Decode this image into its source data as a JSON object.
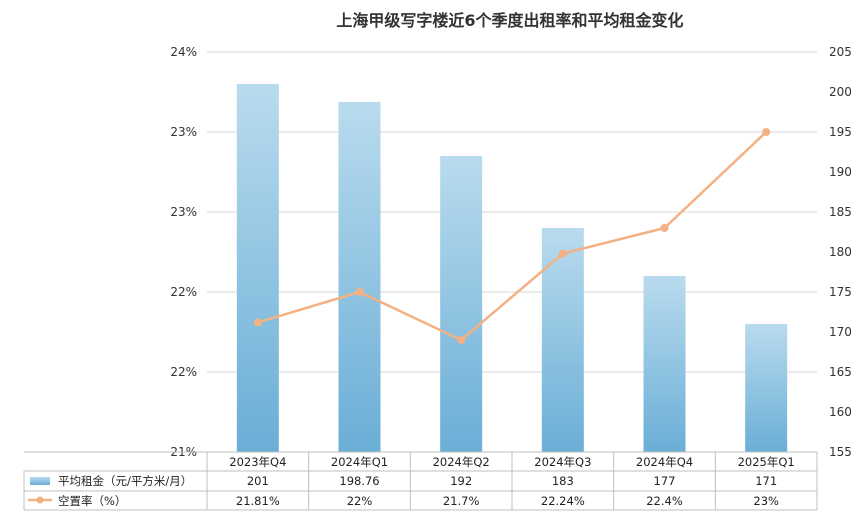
{
  "chart_data": {
    "type": "bar",
    "title": "上海甲级写字楼近6个季度出租率和平均租金变化",
    "categories": [
      "2023年Q4",
      "2024年Q1",
      "2024年Q2",
      "2024年Q3",
      "2024年Q4",
      "2025年Q1"
    ],
    "series": [
      {
        "name": "平均租金（元/平方米/月）",
        "type": "bar",
        "axis": "right",
        "values": [
          201,
          198.76,
          192,
          183,
          177,
          171
        ],
        "labels": [
          "201",
          "198.76",
          "192",
          "183",
          "177",
          "171"
        ],
        "color_top": "#b9dbee",
        "color_bottom": "#6aaed6"
      },
      {
        "name": "空置率（%）",
        "type": "line",
        "axis": "left",
        "values": [
          21.81,
          22,
          21.7,
          22.24,
          22.4,
          23
        ],
        "labels": [
          "21.81%",
          "22%",
          "21.7%",
          "22.24%",
          "22.4%",
          "23%"
        ],
        "color": "#f4b183"
      }
    ],
    "left_axis": {
      "range": [
        21,
        23.5
      ],
      "tick_values": [
        21,
        21.5,
        22,
        22.5,
        23,
        23.5
      ],
      "tick_labels": [
        "21%",
        "22%",
        "22%",
        "23%",
        "23%",
        "24%"
      ]
    },
    "right_axis": {
      "range": [
        155,
        205
      ],
      "ticks": [
        155,
        160,
        165,
        170,
        175,
        180,
        185,
        190,
        195,
        200,
        205
      ]
    },
    "grid": true,
    "legend": "data-table"
  }
}
